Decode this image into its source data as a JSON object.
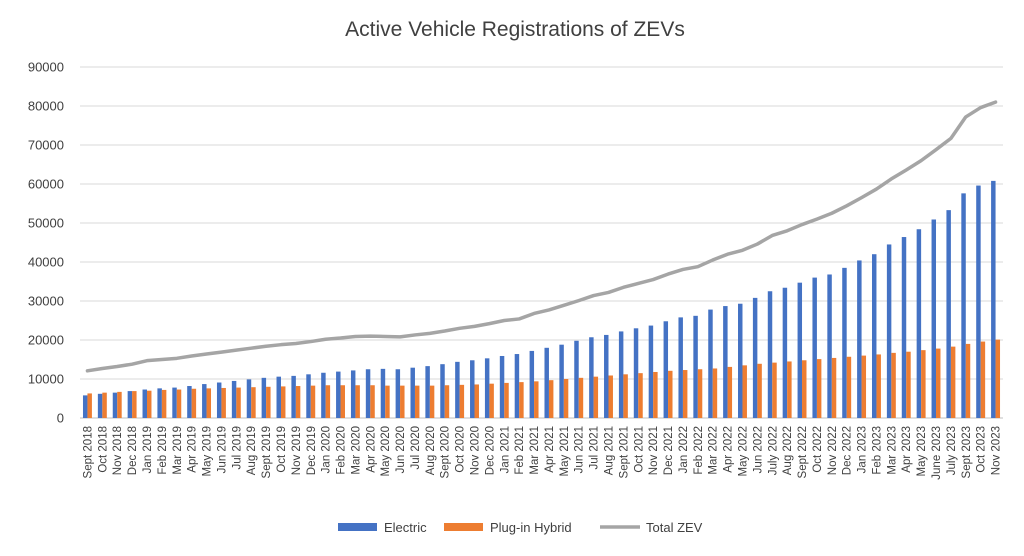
{
  "chart_data": {
    "type": "bar",
    "title": "Active Vehicle Registrations of ZEVs",
    "xlabel": "",
    "ylabel": "",
    "ylim": [
      0,
      90000
    ],
    "yticks": [
      "0",
      "10000",
      "20000",
      "30000",
      "40000",
      "50000",
      "60000",
      "70000",
      "80000",
      "90000"
    ],
    "grid": "horizontal",
    "legend": "bottom",
    "categories": [
      "Sept 2018",
      "Oct 2018",
      "Nov 2018",
      "Dec 2018",
      "Jan 2019",
      "Feb 2019",
      "Mar 2019",
      "Apr 2019",
      "May 2019",
      "Jun 2019",
      "Jul 2019",
      "Aug 2019",
      "Sept 2019",
      "Oct 2019",
      "Nov 2019",
      "Dec 2019",
      "Jan 2020",
      "Feb 2020",
      "Mar 2020",
      "Apr 2020",
      "May 2020",
      "Jun 2020",
      "Jul 2020",
      "Aug 2020",
      "Sept 2020",
      "Oct 2020",
      "Nov 2020",
      "Dec 2020",
      "Jan 2021",
      "Feb 2021",
      "Mar 2021",
      "Apr 2021",
      "May 2021",
      "Jun 2021",
      "Jul 2021",
      "Aug 2021",
      "Sept 2021",
      "Oct 2021",
      "Nov 2021",
      "Dec 2021",
      "Jan 2022",
      "Feb 2022",
      "Mar 2022",
      "Apr 2022",
      "May 2022",
      "Jun 2022",
      "July 2022",
      "Aug 2022",
      "Sept 2022",
      "Oct 2022",
      "Nov 2022",
      "Dec 2022",
      "Jan 2023",
      "Feb 2023",
      "Mar 2023",
      "Apr 2023",
      "May 2023",
      "June 2023",
      "July 2023",
      "Sept 2023",
      "Oct 2023",
      "Nov 2023"
    ],
    "series": [
      {
        "name": "Electric",
        "kind": "bar",
        "color": "#4472C4",
        "values": [
          5800,
          6200,
          6500,
          6900,
          7300,
          7600,
          7800,
          8200,
          8700,
          9100,
          9500,
          9900,
          10300,
          10600,
          10800,
          11200,
          11600,
          11900,
          12200,
          12500,
          12600,
          12500,
          12900,
          13300,
          13800,
          14400,
          14800,
          15300,
          15900,
          16400,
          17200,
          18000,
          18800,
          19800,
          20700,
          21300,
          22200,
          23000,
          23700,
          24800,
          25800,
          26200,
          27800,
          28700,
          29300,
          30800,
          32500,
          33400,
          34700,
          36000,
          36800,
          38500,
          40400,
          42000,
          44500,
          46400,
          48400,
          50900,
          53300,
          57600,
          59600,
          60800
        ]
      },
      {
        "name": "Plug-in Hybrid",
        "kind": "bar",
        "color": "#ED7D31",
        "values": [
          6300,
          6500,
          6700,
          6900,
          7000,
          7200,
          7300,
          7500,
          7600,
          7700,
          7800,
          7900,
          8000,
          8100,
          8200,
          8300,
          8400,
          8400,
          8400,
          8400,
          8300,
          8300,
          8300,
          8300,
          8400,
          8500,
          8600,
          8800,
          9000,
          9200,
          9400,
          9700,
          10000,
          10300,
          10600,
          10900,
          11200,
          11500,
          11800,
          12100,
          12300,
          12500,
          12700,
          13100,
          13500,
          13900,
          14200,
          14500,
          14800,
          15100,
          15400,
          15700,
          16000,
          16300,
          16700,
          17000,
          17400,
          17800,
          18300,
          19000,
          19600,
          20100
        ]
      },
      {
        "name": "Total ZEV",
        "kind": "line",
        "color": "#A5A5A5",
        "values": [
          12100,
          12700,
          13200,
          13800,
          14700,
          15000,
          15300,
          15900,
          16400,
          16900,
          17400,
          17900,
          18400,
          18800,
          19100,
          19600,
          20200,
          20500,
          20900,
          21000,
          20900,
          20800,
          21300,
          21700,
          22300,
          23000,
          23500,
          24200,
          25000,
          25400,
          26800,
          27700,
          28900,
          30100,
          31400,
          32200,
          33500,
          34500,
          35500,
          36900,
          38100,
          38800,
          40500,
          42000,
          43000,
          44600,
          46800,
          48000,
          49600,
          51000,
          52500,
          54400,
          56500,
          58700,
          61300,
          63600,
          66000,
          68800,
          71700,
          77200,
          79600,
          81000
        ]
      }
    ]
  }
}
